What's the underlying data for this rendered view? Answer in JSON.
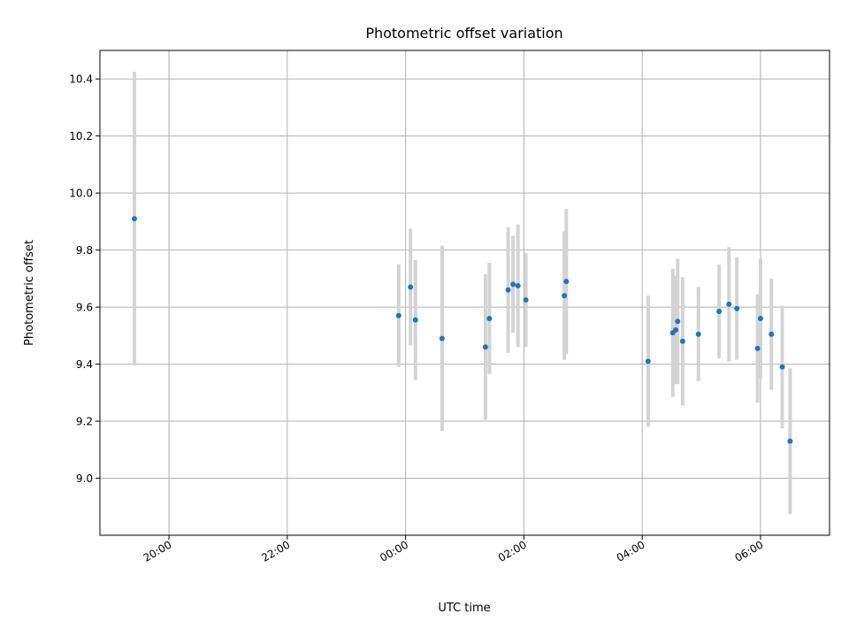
{
  "chart_data": {
    "type": "scatter",
    "title": "Photometric offset variation",
    "xlabel": "UTC time",
    "ylabel": "Photometric offset",
    "x_axis": {
      "kind": "time",
      "range": [
        "18:50",
        "07:10"
      ],
      "day_change_at": "00:00",
      "ticks": [
        "20:00",
        "22:00",
        "00:00",
        "02:00",
        "04:00",
        "06:00"
      ]
    },
    "y_axis": {
      "range": [
        8.8,
        10.5
      ],
      "ticks": [
        "9.0",
        "9.2",
        "9.4",
        "9.6",
        "9.8",
        "10.0",
        "10.2",
        "10.4"
      ]
    },
    "grid": true,
    "point_color": "#1f77b4",
    "errorbar_color": "#d3d3d3",
    "points": [
      {
        "t": "19:25",
        "y": 9.91,
        "err": 0.515
      },
      {
        "t": "23:53",
        "y": 9.57,
        "err": 0.18
      },
      {
        "t": "00:05",
        "y": 9.67,
        "err": 0.205
      },
      {
        "t": "00:10",
        "y": 9.555,
        "err": 0.21
      },
      {
        "t": "00:37",
        "y": 9.49,
        "err": 0.325
      },
      {
        "t": "01:21",
        "y": 9.46,
        "err": 0.255
      },
      {
        "t": "01:25",
        "y": 9.56,
        "err": 0.195
      },
      {
        "t": "01:44",
        "y": 9.66,
        "err": 0.22
      },
      {
        "t": "01:49",
        "y": 9.68,
        "err": 0.17
      },
      {
        "t": "01:54",
        "y": 9.675,
        "err": 0.215
      },
      {
        "t": "02:02",
        "y": 9.625,
        "err": 0.165
      },
      {
        "t": "02:41",
        "y": 9.64,
        "err": 0.225
      },
      {
        "t": "02:43",
        "y": 9.69,
        "err": 0.255
      },
      {
        "t": "04:06",
        "y": 9.41,
        "err": 0.23
      },
      {
        "t": "04:31",
        "y": 9.51,
        "err": 0.225
      },
      {
        "t": "04:34",
        "y": 9.52,
        "err": 0.19
      },
      {
        "t": "04:36",
        "y": 9.55,
        "err": 0.22
      },
      {
        "t": "04:41",
        "y": 9.48,
        "err": 0.225
      },
      {
        "t": "04:57",
        "y": 9.505,
        "err": 0.165
      },
      {
        "t": "05:18",
        "y": 9.585,
        "err": 0.165
      },
      {
        "t": "05:28",
        "y": 9.61,
        "err": 0.2
      },
      {
        "t": "05:36",
        "y": 9.595,
        "err": 0.18
      },
      {
        "t": "05:57",
        "y": 9.455,
        "err": 0.19
      },
      {
        "t": "06:00",
        "y": 9.56,
        "err": 0.21
      },
      {
        "t": "06:11",
        "y": 9.505,
        "err": 0.195
      },
      {
        "t": "06:22",
        "y": 9.39,
        "err": 0.215
      },
      {
        "t": "06:30",
        "y": 9.13,
        "err": 0.255
      }
    ]
  }
}
